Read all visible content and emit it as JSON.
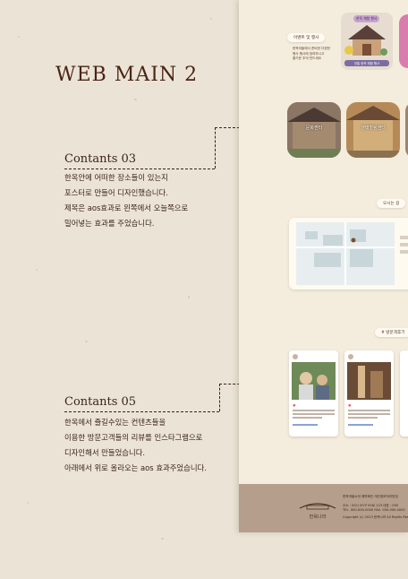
{
  "page": {
    "title": "WEB MAIN 2"
  },
  "sections": [
    {
      "title": "Contants 03",
      "lines": [
        "한옥안에 어떠한 장소들이 있는지",
        "포스터로 만들어 디자인했습니다.",
        "제목은 aos효과로 왼쪽에서 오늘쪽으로",
        "밀어넣는 효과를 주었습니다."
      ]
    },
    {
      "title": "Contants 05",
      "lines": [
        "한옥에서 즐길수있는 컨텐츠들을",
        "이용한 방문고객들의 리뷰를 인스타그램으로",
        "디자인해서 만들었습니다.",
        "아래에서 위로 올라오는 aos 효과주었습니다."
      ]
    }
  ],
  "site": {
    "event_pill": "이벤트 및 행사",
    "event_text": [
      "한옥마을에서 준비한 다양한",
      "행사 행사에 참여하시고",
      "즐거운 추억 만드세요"
    ],
    "poster_tag": "한옥 체험 행사",
    "poster_bottom": "전통 한옥 체험 행사",
    "cards": [
      "문화센터",
      "생태힐링센터"
    ],
    "map_pill": "오시는 길",
    "review_pill": "# 방문객후기",
    "footer_logo": "한옥나라",
    "footer_links": "한옥마을소개  예약확인  개인정보처리방침",
    "footer_address": "주소 : 00시 00구 00로 123  대표 : 000",
    "footer_tel": "TEL. 000-000-0000  FAX. 000-000-0000",
    "footer_copy": "Copyright (c) 2023 한옥나라 All Rights Reserved."
  },
  "colors": {
    "background": "#ebe4d6",
    "text": "#3b2218",
    "footer": "#b59f8c"
  }
}
